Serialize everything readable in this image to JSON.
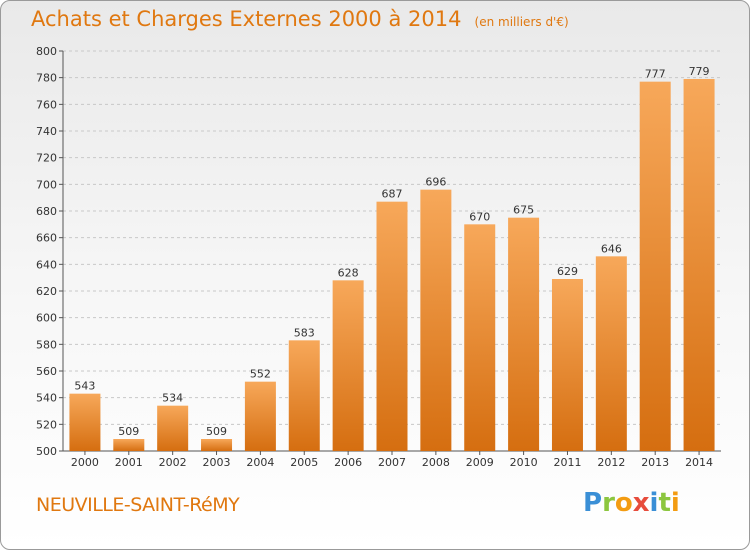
{
  "header": {
    "title": "Achats et Charges Externes 2000 à 2014",
    "subtitle": "(en milliers d'€)"
  },
  "commune": "NEUVILLE-SAINT-RéMY",
  "brand": {
    "name": "Proxiti",
    "letters": [
      {
        "ch": "P",
        "color": "#3a8fd6"
      },
      {
        "ch": "r",
        "color": "#8cc63f"
      },
      {
        "ch": "o",
        "color": "#f39c12"
      },
      {
        "ch": "x",
        "color": "#e74c3c"
      },
      {
        "ch": "i",
        "color": "#3a8fd6"
      },
      {
        "ch": "t",
        "color": "#8cc63f"
      },
      {
        "ch": "i",
        "color": "#f39c12"
      }
    ]
  },
  "colors": {
    "accent": "#e07810",
    "bar_light": "#f7a85a",
    "bar_dark": "#d56e10",
    "grid": "#c8c8c8"
  },
  "chart_data": {
    "type": "bar",
    "title": "Achats et Charges Externes 2000 à 2014",
    "subtitle": "(en milliers d'€)",
    "categories": [
      "2000",
      "2001",
      "2002",
      "2003",
      "2004",
      "2005",
      "2006",
      "2007",
      "2008",
      "2009",
      "2010",
      "2011",
      "2012",
      "2013",
      "2014"
    ],
    "values": [
      543,
      509,
      534,
      509,
      552,
      583,
      628,
      687,
      696,
      670,
      675,
      629,
      646,
      777,
      779
    ],
    "ylim": [
      500,
      800
    ],
    "yticks": [
      500,
      520,
      540,
      560,
      580,
      600,
      620,
      640,
      660,
      680,
      700,
      720,
      740,
      760,
      780,
      800
    ],
    "grid": true,
    "xlabel": "",
    "ylabel": ""
  }
}
